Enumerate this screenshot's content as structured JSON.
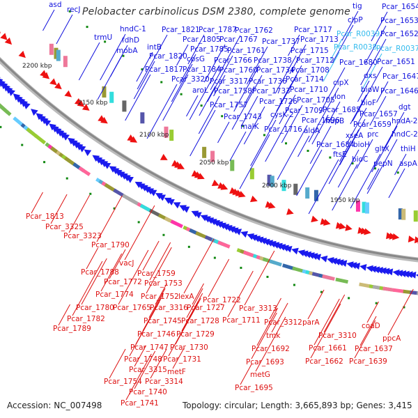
{
  "title": "Pelobacter carbinolicus DSM 2380, complete genome",
  "footer": {
    "accession": "Accession: NC_007498",
    "summary": "Topology: circular; Length: 3,665,893 bp; Genes: 3,415"
  },
  "colors": {
    "forward_label": "#1010dd",
    "rna_label": "#33bbee",
    "reverse_label": "#dd1010",
    "forward_arrow": "#1a1aee",
    "reverse_arrow": "#ee1111",
    "backbone": "#888888",
    "tick_mark": "#118811"
  },
  "scale_ticks": [
    "2200 kbp",
    "2150 kbp",
    "2100 kbp",
    "2050 kbp",
    "2000 kbp",
    "1950 kbp"
  ],
  "forward_labels": [
    "asd",
    "recJ",
    "trmU",
    "hndC-1",
    "fdhD",
    "mobA",
    "intB",
    "Pcar_1820",
    "Pcar_1817",
    "Pcar_1821",
    "Pcar_1805",
    "Pcar_1785",
    "cpsG",
    "Pcar_1784",
    "Pcar_3320",
    "aroL",
    "Pcar_1787",
    "Pcar_1767",
    "Pcar_1761",
    "Pcar_1766",
    "Pcar_1760",
    "Pcar_3317",
    "Pcar_1758",
    "Pcar_1757",
    "Pcar_1762",
    "Pcar_1743",
    "malK",
    "Pcar_1737",
    "Pcar_1738",
    "Pcar_1734",
    "Pcar_1736",
    "Pcar_1733",
    "Pcar_1726",
    "cysK-2",
    "Pcar_1716",
    "Pcar_1717",
    "Pcar_1713",
    "Pcar_1715",
    "Pcar_1712",
    "Pcar_1708",
    "Pcar_1714",
    "Pcar_1710",
    "Pcar_1705",
    "Pcar_1709",
    "Pcar_1696",
    "aldA",
    "tig",
    "clpP",
    "Pcar_1680",
    "clpX",
    "lon",
    "Pcar_1685",
    "hupB",
    "Pcar_1684",
    "ftsE",
    "dxs",
    "bioW",
    "bioF",
    "Pcar_1657",
    "Pcar_1659",
    "xseA",
    "prc",
    "bioH",
    "bioC",
    "gltX",
    "pepN",
    "Pcar_1654",
    "Pcar_1653",
    "Pcar_1652",
    "Pcar_1651",
    "Pcar_1647",
    "Pcar_1646",
    "dgt",
    "hndA-2",
    "hndC-2",
    "thiH",
    "aspA"
  ],
  "rna_labels": [
    "Pcar_R0039",
    "Pcar_R0038",
    "Pcar_R0037"
  ],
  "reverse_labels": [
    "Pcar_1813",
    "Pcar_3325",
    "Pcar_3323",
    "Pcar_1790",
    "vacJ",
    "Pcar_1788",
    "Pcar_1772",
    "Pcar_1774",
    "Pcar_1780",
    "Pcar_1782",
    "Pcar_1789",
    "Pcar_1759",
    "Pcar_1753",
    "Pcar_1752",
    "Pcar_1765",
    "Pcar_3316",
    "Pcar_1745",
    "Pcar_1746",
    "Pcar_1747",
    "Pcar_1748",
    "Pcar_3315",
    "Pcar_1754",
    "Pcar_1740",
    "Pcar_1741",
    "lexA",
    "Pcar_1727",
    "Pcar_1728",
    "Pcar_1729",
    "Pcar_1730",
    "Pcar_1731",
    "metF",
    "Pcar_3314",
    "Pcar_1722",
    "Pcar_1711",
    "Pcar_3313",
    "Pcar_3312",
    "tmk",
    "Pcar_1692",
    "Pcar_1693",
    "metG",
    "Pcar_1695",
    "parA",
    "Pcar_3310",
    "Pcar_1661",
    "Pcar_1662",
    "coaD",
    "Pcar_1637",
    "Pcar_1639",
    "ppcA"
  ]
}
